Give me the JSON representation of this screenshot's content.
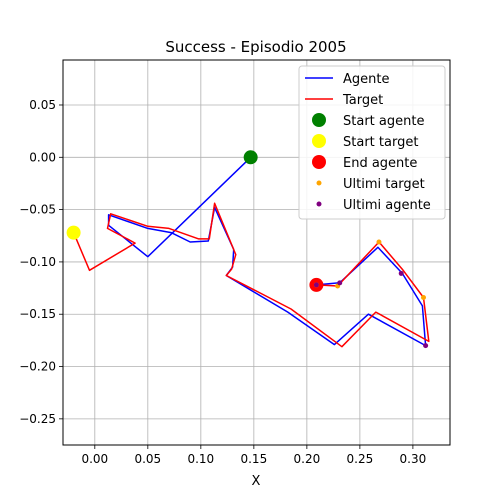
{
  "chart_data": {
    "type": "line",
    "title": "Success - Episodio 2005",
    "xlabel": "X",
    "ylabel": "",
    "xlim": [
      -0.03,
      0.335
    ],
    "ylim": [
      -0.275,
      0.093
    ],
    "xticks": [
      0.0,
      0.05,
      0.1,
      0.15,
      0.2,
      0.25,
      0.3
    ],
    "xtick_labels": [
      "0.00",
      "0.05",
      "0.10",
      "0.15",
      "0.20",
      "0.25",
      "0.30"
    ],
    "yticks": [
      0.05,
      0.0,
      -0.05,
      -0.1,
      -0.15,
      -0.2,
      -0.25
    ],
    "ytick_labels": [
      "0.05",
      "0.00",
      "−0.05",
      "−0.10",
      "−0.15",
      "−0.20",
      "−0.25"
    ],
    "grid": true,
    "legend_position": "top-right",
    "series": [
      {
        "name": "Agente",
        "kind": "line",
        "color": "#0000ff",
        "x": [
          0.147,
          0.05,
          0.013,
          0.013,
          0.05,
          0.072,
          0.09,
          0.107,
          0.113,
          0.131,
          0.13,
          0.124,
          0.182,
          0.226,
          0.258,
          0.312,
          0.309,
          0.29,
          0.267,
          0.231,
          0.209
        ],
        "y": [
          0.0,
          -0.095,
          -0.065,
          -0.055,
          -0.068,
          -0.072,
          -0.081,
          -0.08,
          -0.048,
          -0.088,
          -0.105,
          -0.113,
          -0.148,
          -0.179,
          -0.15,
          -0.18,
          -0.142,
          -0.111,
          -0.086,
          -0.12,
          -0.122
        ]
      },
      {
        "name": "Target",
        "kind": "line",
        "color": "#ff0000",
        "x": [
          -0.02,
          -0.005,
          0.038,
          0.012,
          0.015,
          0.05,
          0.07,
          0.098,
          0.108,
          0.113,
          0.133,
          0.129,
          0.124,
          0.185,
          0.233,
          0.265,
          0.315,
          0.31,
          0.29,
          0.268,
          0.229,
          0.209
        ],
        "y": [
          -0.072,
          -0.108,
          -0.082,
          -0.068,
          -0.054,
          -0.066,
          -0.068,
          -0.078,
          -0.078,
          -0.044,
          -0.093,
          -0.107,
          -0.113,
          -0.145,
          -0.181,
          -0.148,
          -0.176,
          -0.134,
          -0.107,
          -0.081,
          -0.123,
          -0.122
        ]
      },
      {
        "name": "Start agente",
        "kind": "marker",
        "color": "#008000",
        "x": [
          0.147
        ],
        "y": [
          0.0
        ]
      },
      {
        "name": "Start target",
        "kind": "marker",
        "color": "#ffff00",
        "x": [
          -0.02
        ],
        "y": [
          -0.072
        ]
      },
      {
        "name": "End agente",
        "kind": "marker",
        "color": "#ff0000",
        "x": [
          0.209
        ],
        "y": [
          -0.122
        ]
      },
      {
        "name": "Ultimi target",
        "kind": "scatter",
        "color": "#ffa500",
        "x": [
          0.268,
          0.31,
          0.229,
          0.209
        ],
        "y": [
          -0.081,
          -0.134,
          -0.123,
          -0.122
        ]
      },
      {
        "name": "Ultimi agente",
        "kind": "scatter",
        "color": "#800080",
        "x": [
          0.289,
          0.312,
          0.231,
          0.209
        ],
        "y": [
          -0.111,
          -0.18,
          -0.12,
          -0.122
        ]
      }
    ]
  }
}
